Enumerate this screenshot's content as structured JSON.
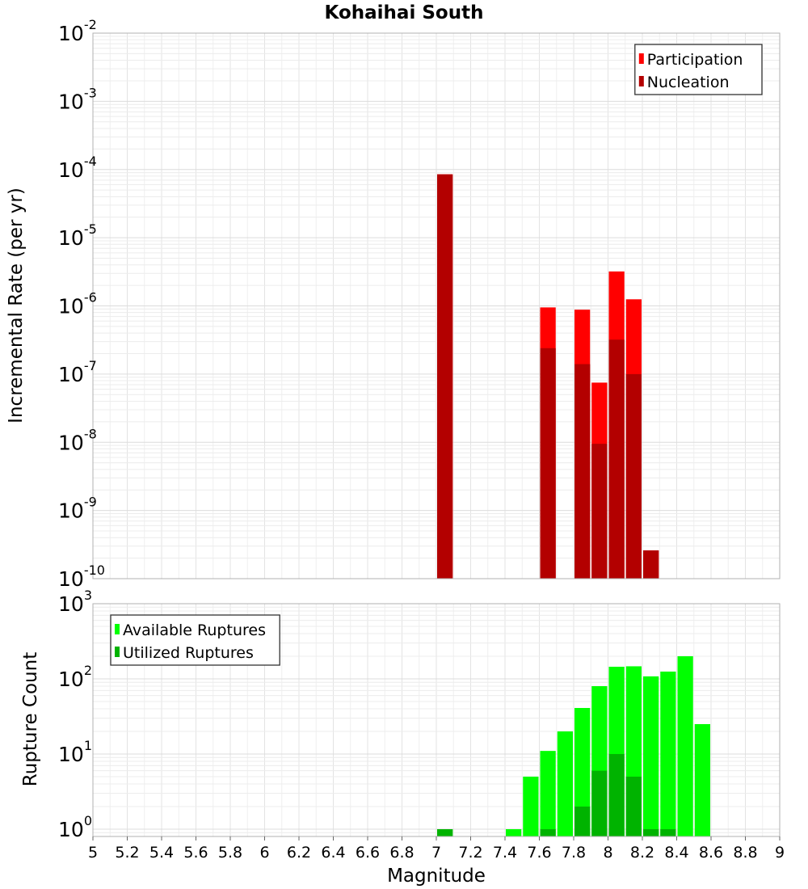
{
  "chart_data": [
    {
      "type": "bar",
      "title": "Kohaihai South",
      "xlabel": "",
      "ylabel": "Incremental Rate (per yr)",
      "xlim": [
        5,
        9
      ],
      "ylim": [
        1e-10,
        0.01
      ],
      "yscale": "log",
      "grid": true,
      "legend_position": "top-right",
      "bin_width": 0.1,
      "series": [
        {
          "name": "Participation",
          "color": "#ff0000",
          "x": [
            7.05,
            7.65,
            7.85,
            7.95,
            8.05,
            8.15,
            8.25
          ],
          "values": [
            8.5e-05,
            9.5e-07,
            8.8e-07,
            7.5e-08,
            3.2e-06,
            1.25e-06,
            2.6e-10
          ]
        },
        {
          "name": "Nucleation",
          "color": "#b30000",
          "x": [
            7.05,
            7.65,
            7.85,
            7.95,
            8.05,
            8.15,
            8.25
          ],
          "values": [
            8.5e-05,
            2.4e-07,
            1.4e-07,
            9.5e-09,
            3.2e-07,
            1e-07,
            2.6e-10
          ]
        }
      ]
    },
    {
      "type": "bar",
      "title": "",
      "xlabel": "Magnitude",
      "ylabel": "Rupture Count",
      "xlim": [
        5,
        9
      ],
      "ylim": [
        0.8,
        1000
      ],
      "yscale": "log",
      "grid": true,
      "legend_position": "top-left",
      "bin_width": 0.1,
      "x_ticks": [
        "5",
        "5.2",
        "5.4",
        "5.6",
        "5.8",
        "6",
        "6.2",
        "6.4",
        "6.6",
        "6.8",
        "7",
        "7.2",
        "7.4",
        "7.6",
        "7.8",
        "8",
        "8.2",
        "8.4",
        "8.6",
        "8.8",
        "9"
      ],
      "series": [
        {
          "name": "Available Ruptures",
          "color": "#00ff00",
          "x": [
            7.05,
            7.45,
            7.55,
            7.65,
            7.75,
            7.85,
            7.95,
            8.05,
            8.15,
            8.25,
            8.35,
            8.45,
            8.55
          ],
          "values": [
            1,
            1,
            5,
            11,
            20,
            41,
            80,
            145,
            147,
            108,
            125,
            200,
            25
          ]
        },
        {
          "name": "Utilized Ruptures",
          "color": "#00b300",
          "x": [
            7.05,
            7.65,
            7.85,
            7.95,
            8.05,
            8.15,
            8.25,
            8.35
          ],
          "values": [
            1,
            1,
            2,
            6,
            10,
            5,
            1,
            1
          ]
        }
      ]
    }
  ]
}
